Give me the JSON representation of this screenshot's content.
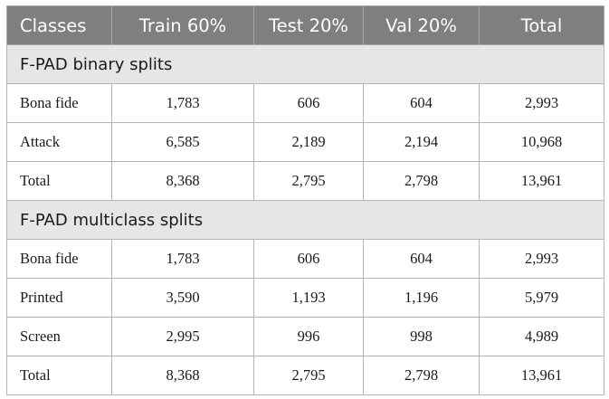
{
  "table": {
    "headers": [
      "Classes",
      "Train 60%",
      "Test 20%",
      "Val 20%",
      "Total"
    ],
    "sections": [
      {
        "title": "F-PAD binary splits",
        "rows": [
          [
            "Bona fide",
            "1,783",
            "606",
            "604",
            "2,993"
          ],
          [
            "Attack",
            "6,585",
            "2,189",
            "2,194",
            "10,968"
          ],
          [
            "Total",
            "8,368",
            "2,795",
            "2,798",
            "13,961"
          ]
        ]
      },
      {
        "title": "F-PAD multiclass splits",
        "rows": [
          [
            "Bona fide",
            "1,783",
            "606",
            "604",
            "2,993"
          ],
          [
            "Printed",
            "3,590",
            "1,193",
            "1,196",
            "5,979"
          ],
          [
            "Screen",
            "2,995",
            "996",
            "998",
            "4,989"
          ],
          [
            "Total",
            "8,368",
            "2,795",
            "2,798",
            "13,961"
          ]
        ]
      }
    ]
  }
}
